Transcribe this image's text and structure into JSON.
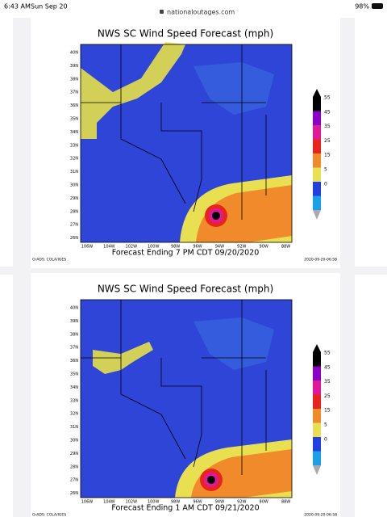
{
  "status_bar": {
    "time": "6:43 AM",
    "date": "Sun Sep 20",
    "url": "nationaloutages.com",
    "battery": "98%"
  },
  "panels": [
    {
      "title": "NWS SC Wind Speed Forecast (mph)",
      "caption": "Forecast Ending 7 PM CDT 09/20/2020",
      "source": "GrADS: COLA/IGES",
      "timestamp": "2020-09-20-06:58"
    },
    {
      "title": "NWS SC Wind Speed Forecast (mph)",
      "caption": "Forecast Ending 1 AM CDT 09/21/2020",
      "source": "GrADS: COLA/IGES",
      "timestamp": "2020-09-20-06:58"
    }
  ],
  "lat_labels": [
    "40N",
    "39N",
    "38N",
    "37N",
    "36N",
    "35N",
    "34N",
    "33N",
    "32N",
    "31N",
    "30N",
    "29N",
    "28N",
    "27N",
    "26N"
  ],
  "lon_labels": [
    "106W",
    "104W",
    "102W",
    "100W",
    "98W",
    "96W",
    "94W",
    "92W",
    "90W",
    "88W"
  ],
  "colorbar_labels": [
    "55",
    "45",
    "35",
    "25",
    "15",
    "5",
    "0"
  ]
}
